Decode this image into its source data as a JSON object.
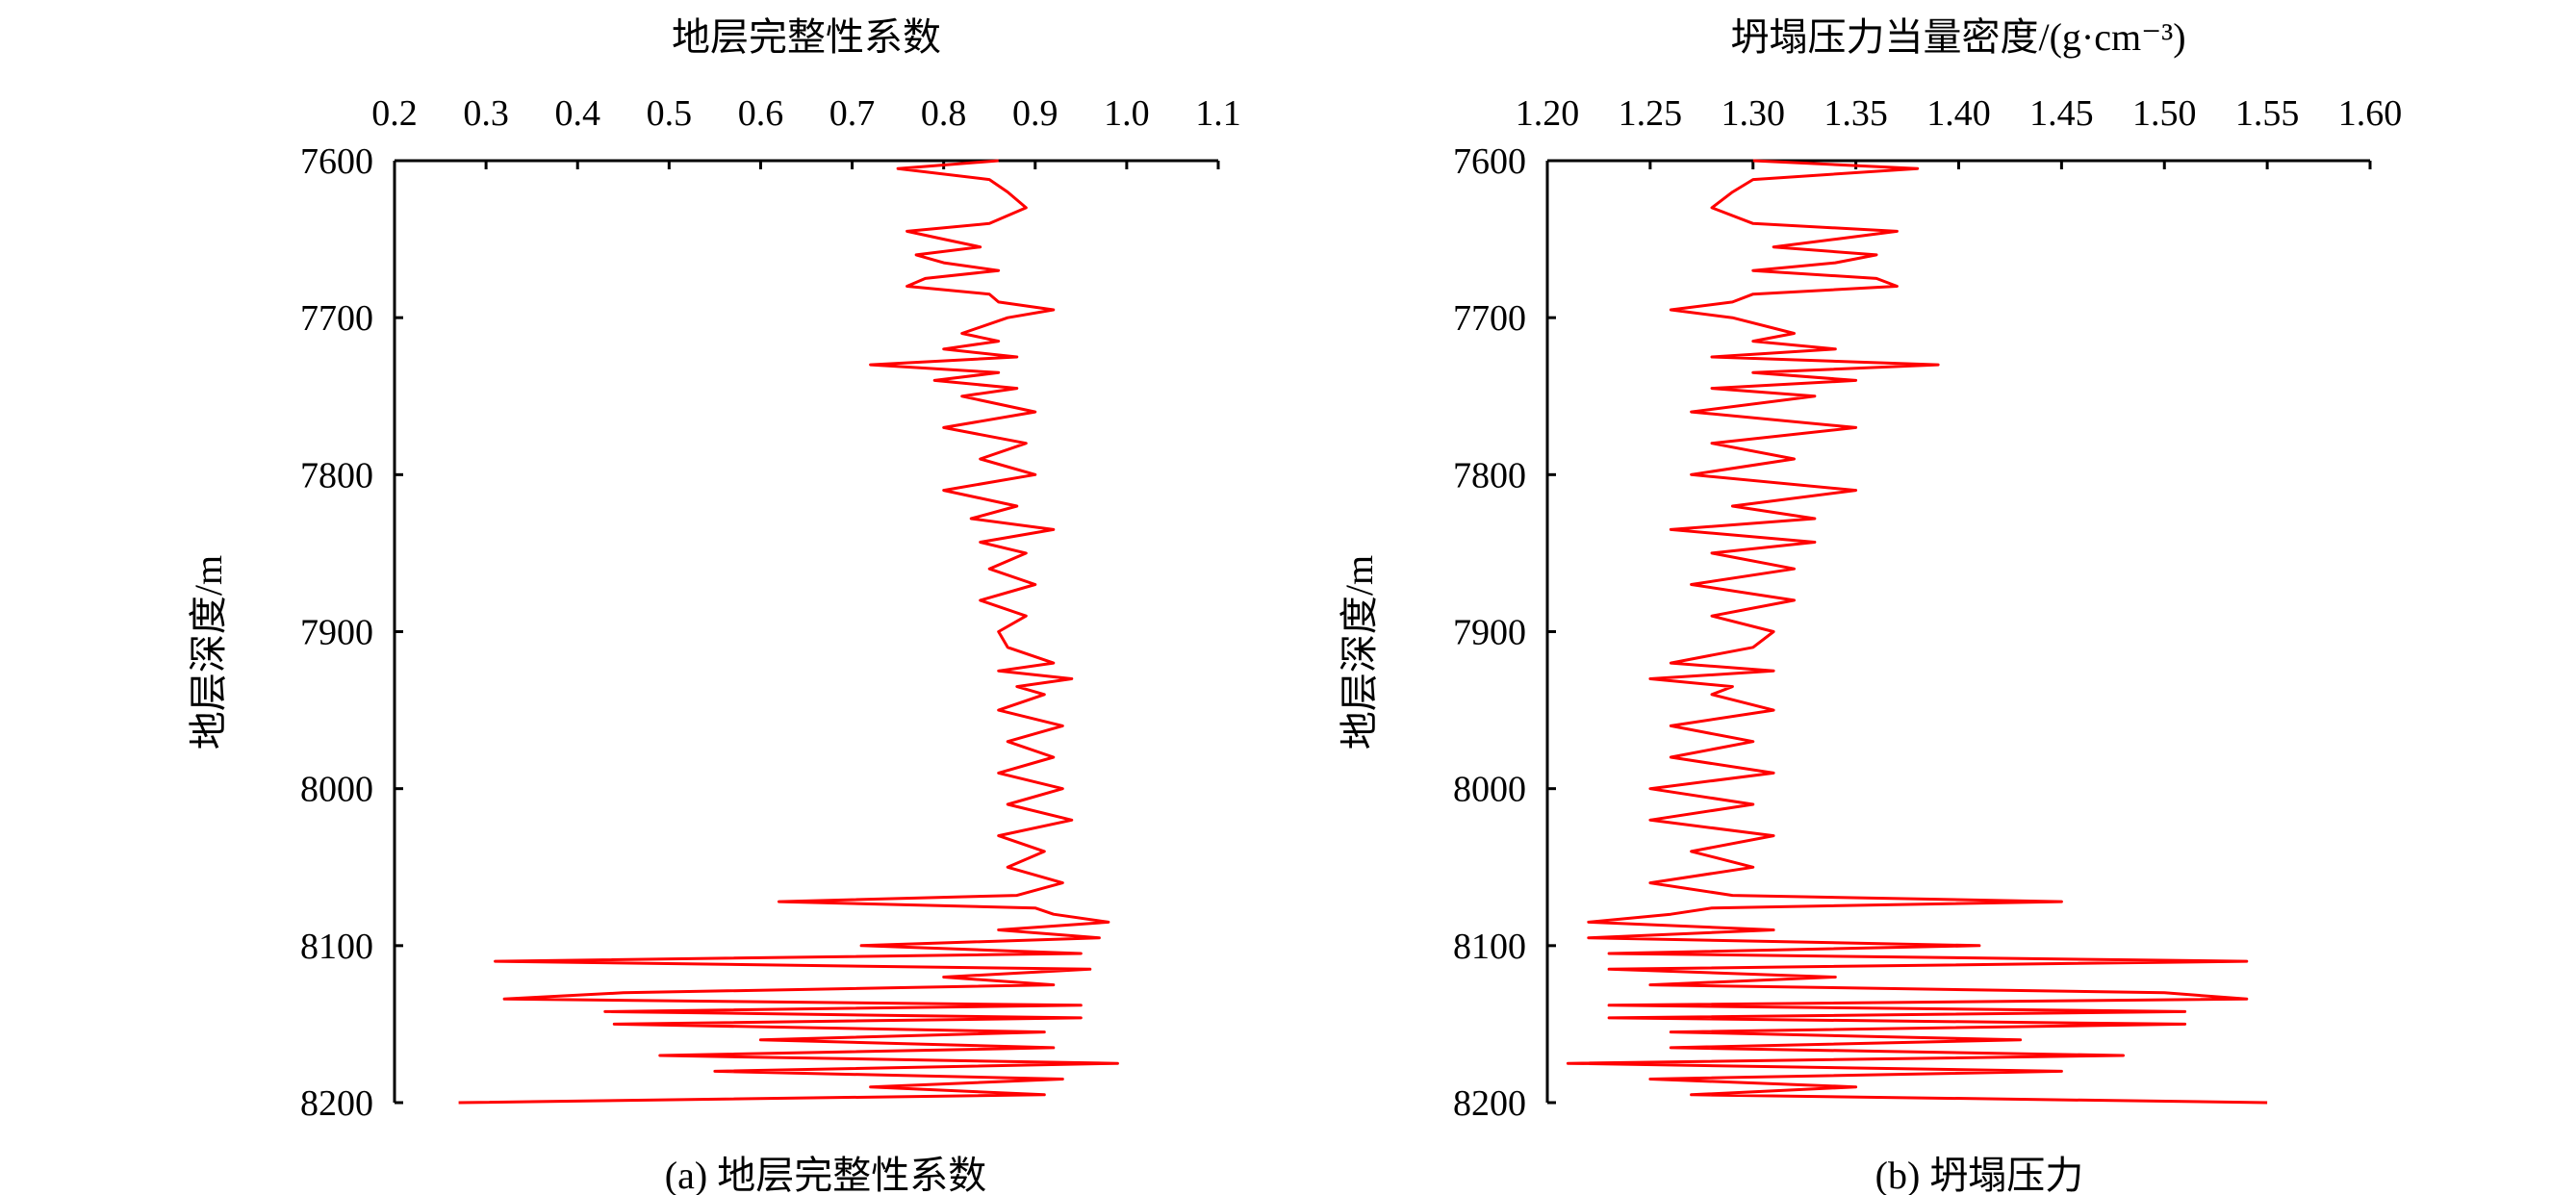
{
  "figure": {
    "panels": [
      {
        "caption": "(a) 地层完整性系数"
      },
      {
        "caption": "(b) 坍塌压力"
      }
    ]
  },
  "chart_data": [
    {
      "type": "line",
      "title": "地层完整性系数",
      "xlabel": "地层完整性系数",
      "ylabel": "地层深度/m",
      "xlim": [
        0.2,
        1.1
      ],
      "ylim": [
        8200,
        7600
      ],
      "x_ticks": [
        "0.2",
        "0.3",
        "0.4",
        "0.5",
        "0.6",
        "0.7",
        "0.8",
        "0.9",
        "1.0",
        "1.1"
      ],
      "y_ticks": [
        "7600",
        "7700",
        "7800",
        "7900",
        "8000",
        "8100",
        "8200"
      ],
      "x_axis_position": "top",
      "y_inverted": true,
      "grid": false,
      "series": [
        {
          "color": "#ff0000",
          "depth": [
            7600,
            7605,
            7612,
            7620,
            7630,
            7640,
            7645,
            7650,
            7655,
            7660,
            7665,
            7670,
            7675,
            7680,
            7685,
            7690,
            7695,
            7700,
            7710,
            7715,
            7720,
            7725,
            7730,
            7735,
            7740,
            7745,
            7750,
            7760,
            7770,
            7780,
            7790,
            7800,
            7810,
            7820,
            7828,
            7835,
            7843,
            7850,
            7860,
            7870,
            7880,
            7890,
            7900,
            7910,
            7920,
            7925,
            7930,
            7935,
            7940,
            7950,
            7960,
            7970,
            7980,
            7990,
            8000,
            8010,
            8020,
            8030,
            8040,
            8050,
            8060,
            8068,
            8072,
            8076,
            8080,
            8085,
            8090,
            8095,
            8100,
            8105,
            8110,
            8115,
            8120,
            8125,
            8130,
            8134,
            8138,
            8142,
            8146,
            8150,
            8155,
            8160,
            8165,
            8170,
            8175,
            8180,
            8185,
            8190,
            8195,
            8200
          ],
          "values": [
            0.86,
            0.75,
            0.85,
            0.87,
            0.89,
            0.85,
            0.76,
            0.8,
            0.84,
            0.77,
            0.8,
            0.86,
            0.78,
            0.76,
            0.85,
            0.86,
            0.92,
            0.87,
            0.82,
            0.86,
            0.8,
            0.88,
            0.72,
            0.86,
            0.79,
            0.88,
            0.82,
            0.9,
            0.8,
            0.89,
            0.84,
            0.9,
            0.8,
            0.88,
            0.83,
            0.92,
            0.84,
            0.89,
            0.85,
            0.9,
            0.84,
            0.89,
            0.86,
            0.87,
            0.92,
            0.86,
            0.94,
            0.88,
            0.91,
            0.86,
            0.93,
            0.87,
            0.92,
            0.86,
            0.93,
            0.87,
            0.94,
            0.86,
            0.91,
            0.87,
            0.93,
            0.88,
            0.62,
            0.9,
            0.92,
            0.98,
            0.86,
            0.97,
            0.71,
            0.95,
            0.31,
            0.96,
            0.8,
            0.92,
            0.45,
            0.32,
            0.95,
            0.43,
            0.95,
            0.44,
            0.91,
            0.6,
            0.92,
            0.49,
            0.99,
            0.55,
            0.93,
            0.72,
            0.91,
            0.27
          ]
        }
      ]
    },
    {
      "type": "line",
      "title": "坍塌压力当量密度/(g·cm⁻³)",
      "xlabel": "坍塌压力当量密度/(g·cm⁻³)",
      "ylabel": "地层深度/m",
      "xlim": [
        1.2,
        1.6
      ],
      "ylim": [
        8200,
        7600
      ],
      "x_ticks": [
        "1.20",
        "1.25",
        "1.30",
        "1.35",
        "1.40",
        "1.45",
        "1.50",
        "1.55",
        "1.60"
      ],
      "y_ticks": [
        "7600",
        "7700",
        "7800",
        "7900",
        "8000",
        "8100",
        "8200"
      ],
      "x_axis_position": "top",
      "y_inverted": true,
      "grid": false,
      "series": [
        {
          "color": "#ff0000",
          "depth": [
            7600,
            7605,
            7612,
            7620,
            7630,
            7640,
            7645,
            7650,
            7655,
            7660,
            7665,
            7670,
            7675,
            7680,
            7685,
            7690,
            7695,
            7700,
            7710,
            7715,
            7720,
            7725,
            7730,
            7735,
            7740,
            7745,
            7750,
            7760,
            7770,
            7780,
            7790,
            7800,
            7810,
            7820,
            7828,
            7835,
            7843,
            7850,
            7860,
            7870,
            7880,
            7890,
            7900,
            7910,
            7920,
            7925,
            7930,
            7935,
            7940,
            7950,
            7960,
            7970,
            7980,
            7990,
            8000,
            8010,
            8020,
            8030,
            8040,
            8050,
            8060,
            8068,
            8072,
            8076,
            8080,
            8085,
            8090,
            8095,
            8100,
            8105,
            8110,
            8115,
            8120,
            8125,
            8130,
            8134,
            8138,
            8142,
            8146,
            8150,
            8155,
            8160,
            8165,
            8170,
            8175,
            8180,
            8185,
            8190,
            8195,
            8200
          ],
          "values": [
            1.3,
            1.38,
            1.3,
            1.29,
            1.28,
            1.3,
            1.37,
            1.34,
            1.31,
            1.36,
            1.34,
            1.3,
            1.36,
            1.37,
            1.3,
            1.29,
            1.26,
            1.29,
            1.32,
            1.3,
            1.34,
            1.28,
            1.39,
            1.3,
            1.35,
            1.28,
            1.33,
            1.27,
            1.35,
            1.28,
            1.32,
            1.27,
            1.35,
            1.29,
            1.33,
            1.26,
            1.33,
            1.28,
            1.32,
            1.27,
            1.32,
            1.28,
            1.31,
            1.3,
            1.26,
            1.31,
            1.25,
            1.29,
            1.28,
            1.31,
            1.26,
            1.3,
            1.26,
            1.31,
            1.25,
            1.3,
            1.25,
            1.31,
            1.27,
            1.3,
            1.25,
            1.29,
            1.45,
            1.28,
            1.26,
            1.22,
            1.31,
            1.22,
            1.41,
            1.23,
            1.54,
            1.23,
            1.34,
            1.25,
            1.5,
            1.54,
            1.23,
            1.51,
            1.23,
            1.51,
            1.26,
            1.43,
            1.26,
            1.48,
            1.21,
            1.45,
            1.25,
            1.35,
            1.27,
            1.55
          ]
        }
      ]
    }
  ]
}
